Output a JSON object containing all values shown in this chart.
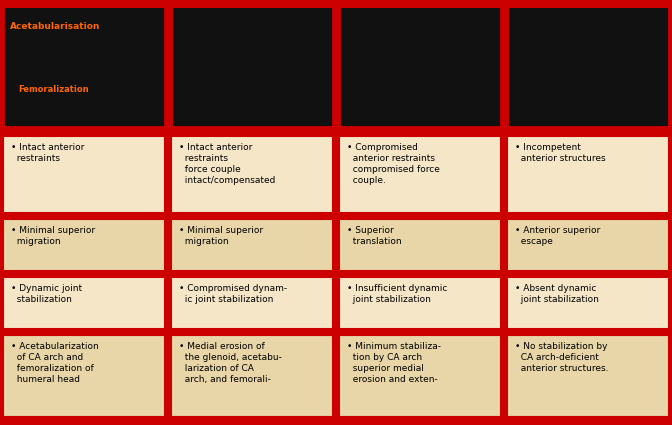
{
  "bg_color": "#cc0000",
  "cell_bg_colors": [
    "#f5e6c8",
    "#e8d5a8",
    "#f5e6c8",
    "#e8d5a8"
  ],
  "border_color": "#cc0000",
  "text_color": "#000000",
  "columns": [
    {
      "bullets": [
        "• Intact anterior\n  restraints",
        "• Minimal superior\n  migration",
        "• Dynamic joint\n  stabilization",
        "• Acetabularization\n  of CA arch and\n  femoralization of\n  humeral head"
      ]
    },
    {
      "bullets": [
        "• Intact anterior\n  restraints\n  force couple\n  intact/compensated",
        "• Minimal superior\n  migration",
        "• Compromised dynam-\n  ic joint stabilization",
        "• Medial erosion of\n  the glenoid, acetabu-\n  larization of CA\n  arch, and femorali-"
      ]
    },
    {
      "bullets": [
        "• Compromised\n  anterior restraints\n  compromised force\n  couple.",
        "• Superior\n  translation",
        "• Insufficient dynamic\n  joint stabilization",
        "• Minimum stabiliza-\n  tion by CA arch\n  superior medial\n  erosion and exten-"
      ]
    },
    {
      "bullets": [
        "• Incompetent\n  anterior structures",
        "• Anterior superior\n  escape",
        "• Absent dynamic\n  joint stabilization",
        "• No stabilization by\n  CA arch-deficient\n  anterior structures."
      ]
    }
  ],
  "img_label1": "Acetabularisation",
  "img_label2": "Femoralization",
  "img_label1_color": "#ff6600",
  "img_label2_color": "#ff6600"
}
